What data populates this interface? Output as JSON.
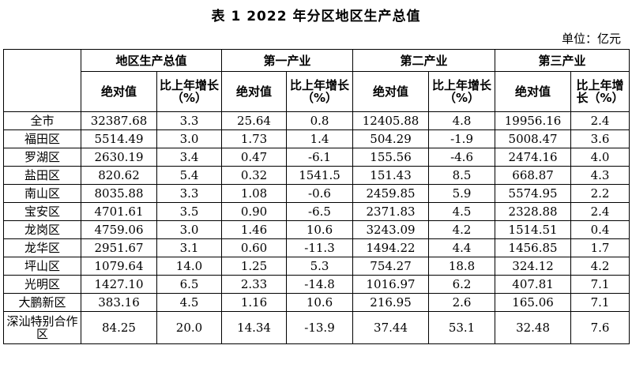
{
  "title": "表 1   2022 年分区地区生产总值",
  "unit": "单位：亿元",
  "groups": [
    "地区生产总值",
    "第一产业",
    "第二产业",
    "第三产业"
  ],
  "sub": {
    "abs": "绝对值",
    "growth": "比上年增长（%）"
  },
  "rows": [
    {
      "region": "全市",
      "v": [
        "32387.68",
        "3.3",
        "25.64",
        "0.8",
        "12405.88",
        "4.8",
        "19956.16",
        "2.4"
      ]
    },
    {
      "region": "福田区",
      "v": [
        "5514.49",
        "3.0",
        "1.73",
        "1.4",
        "504.29",
        "-1.9",
        "5008.47",
        "3.6"
      ]
    },
    {
      "region": "罗湖区",
      "v": [
        "2630.19",
        "3.4",
        "0.47",
        "-6.1",
        "155.56",
        "-4.6",
        "2474.16",
        "4.0"
      ]
    },
    {
      "region": "盐田区",
      "v": [
        "820.62",
        "5.4",
        "0.32",
        "1541.5",
        "151.43",
        "8.5",
        "668.87",
        "4.3"
      ]
    },
    {
      "region": "南山区",
      "v": [
        "8035.88",
        "3.3",
        "1.08",
        "-0.6",
        "2459.85",
        "5.9",
        "5574.95",
        "2.2"
      ]
    },
    {
      "region": "宝安区",
      "v": [
        "4701.61",
        "3.5",
        "0.90",
        "-6.5",
        "2371.83",
        "4.5",
        "2328.88",
        "2.4"
      ]
    },
    {
      "region": "龙岗区",
      "v": [
        "4759.06",
        "3.0",
        "1.46",
        "10.6",
        "3243.09",
        "4.2",
        "1514.51",
        "0.4"
      ]
    },
    {
      "region": "龙华区",
      "v": [
        "2951.67",
        "3.1",
        "0.60",
        "-11.3",
        "1494.22",
        "4.4",
        "1456.85",
        "1.7"
      ]
    },
    {
      "region": "坪山区",
      "v": [
        "1079.64",
        "14.0",
        "1.25",
        "5.3",
        "754.27",
        "18.8",
        "324.12",
        "4.2"
      ]
    },
    {
      "region": "光明区",
      "v": [
        "1427.10",
        "6.5",
        "2.33",
        "-14.8",
        "1016.97",
        "6.2",
        "407.81",
        "7.1"
      ]
    },
    {
      "region": "大鹏新区",
      "v": [
        "383.16",
        "4.5",
        "1.16",
        "10.6",
        "216.95",
        "2.6",
        "165.06",
        "7.1"
      ]
    },
    {
      "region": "深汕特别合作区",
      "v": [
        "84.25",
        "20.0",
        "14.34",
        "-13.9",
        "37.44",
        "53.1",
        "32.48",
        "7.6"
      ]
    }
  ]
}
